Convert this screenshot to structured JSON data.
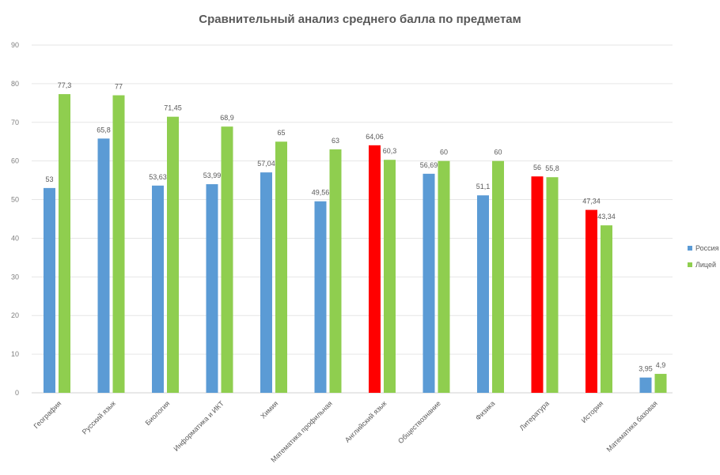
{
  "chart_data": {
    "type": "bar",
    "title": "Сравнительный анализ среднего балла по предметам",
    "xlabel": "",
    "ylabel": "",
    "ylim": [
      0,
      90
    ],
    "yticks": [
      0,
      10,
      20,
      30,
      40,
      50,
      60,
      70,
      80,
      90
    ],
    "grid": true,
    "legend_position": "right",
    "categories": [
      "География",
      "Русский язык",
      "Биология",
      "Информатика и ИКТ",
      "Химия",
      "Математика профильная",
      "Английский язык",
      "Обществознание",
      "Физика",
      "Литература",
      "История",
      "Математика базовая"
    ],
    "series": [
      {
        "name": "Россия",
        "color": "#5b9bd5",
        "values": [
          53,
          65.8,
          53.63,
          53.99,
          57.04,
          49.56,
          64.06,
          56.69,
          51.1,
          56,
          47.34,
          3.95
        ],
        "labels": [
          "53",
          "65,8",
          "53,63",
          "53,99",
          "57,04",
          "49,56",
          "64,06",
          "56,69",
          "51,1",
          "56",
          "47,34",
          "3,95"
        ],
        "highlight_color": "#ff0000",
        "highlight_indices": [
          6,
          9,
          10
        ]
      },
      {
        "name": "Лицей",
        "color": "#8fce4f",
        "values": [
          77.3,
          77,
          71.45,
          68.9,
          65,
          63,
          60.3,
          60,
          60,
          55.8,
          43.34,
          4.9
        ],
        "labels": [
          "77,3",
          "77",
          "71,45",
          "68,9",
          "65",
          "63",
          "60,3",
          "60",
          "60",
          "55,8",
          "43,34",
          "4,9"
        ]
      }
    ]
  }
}
